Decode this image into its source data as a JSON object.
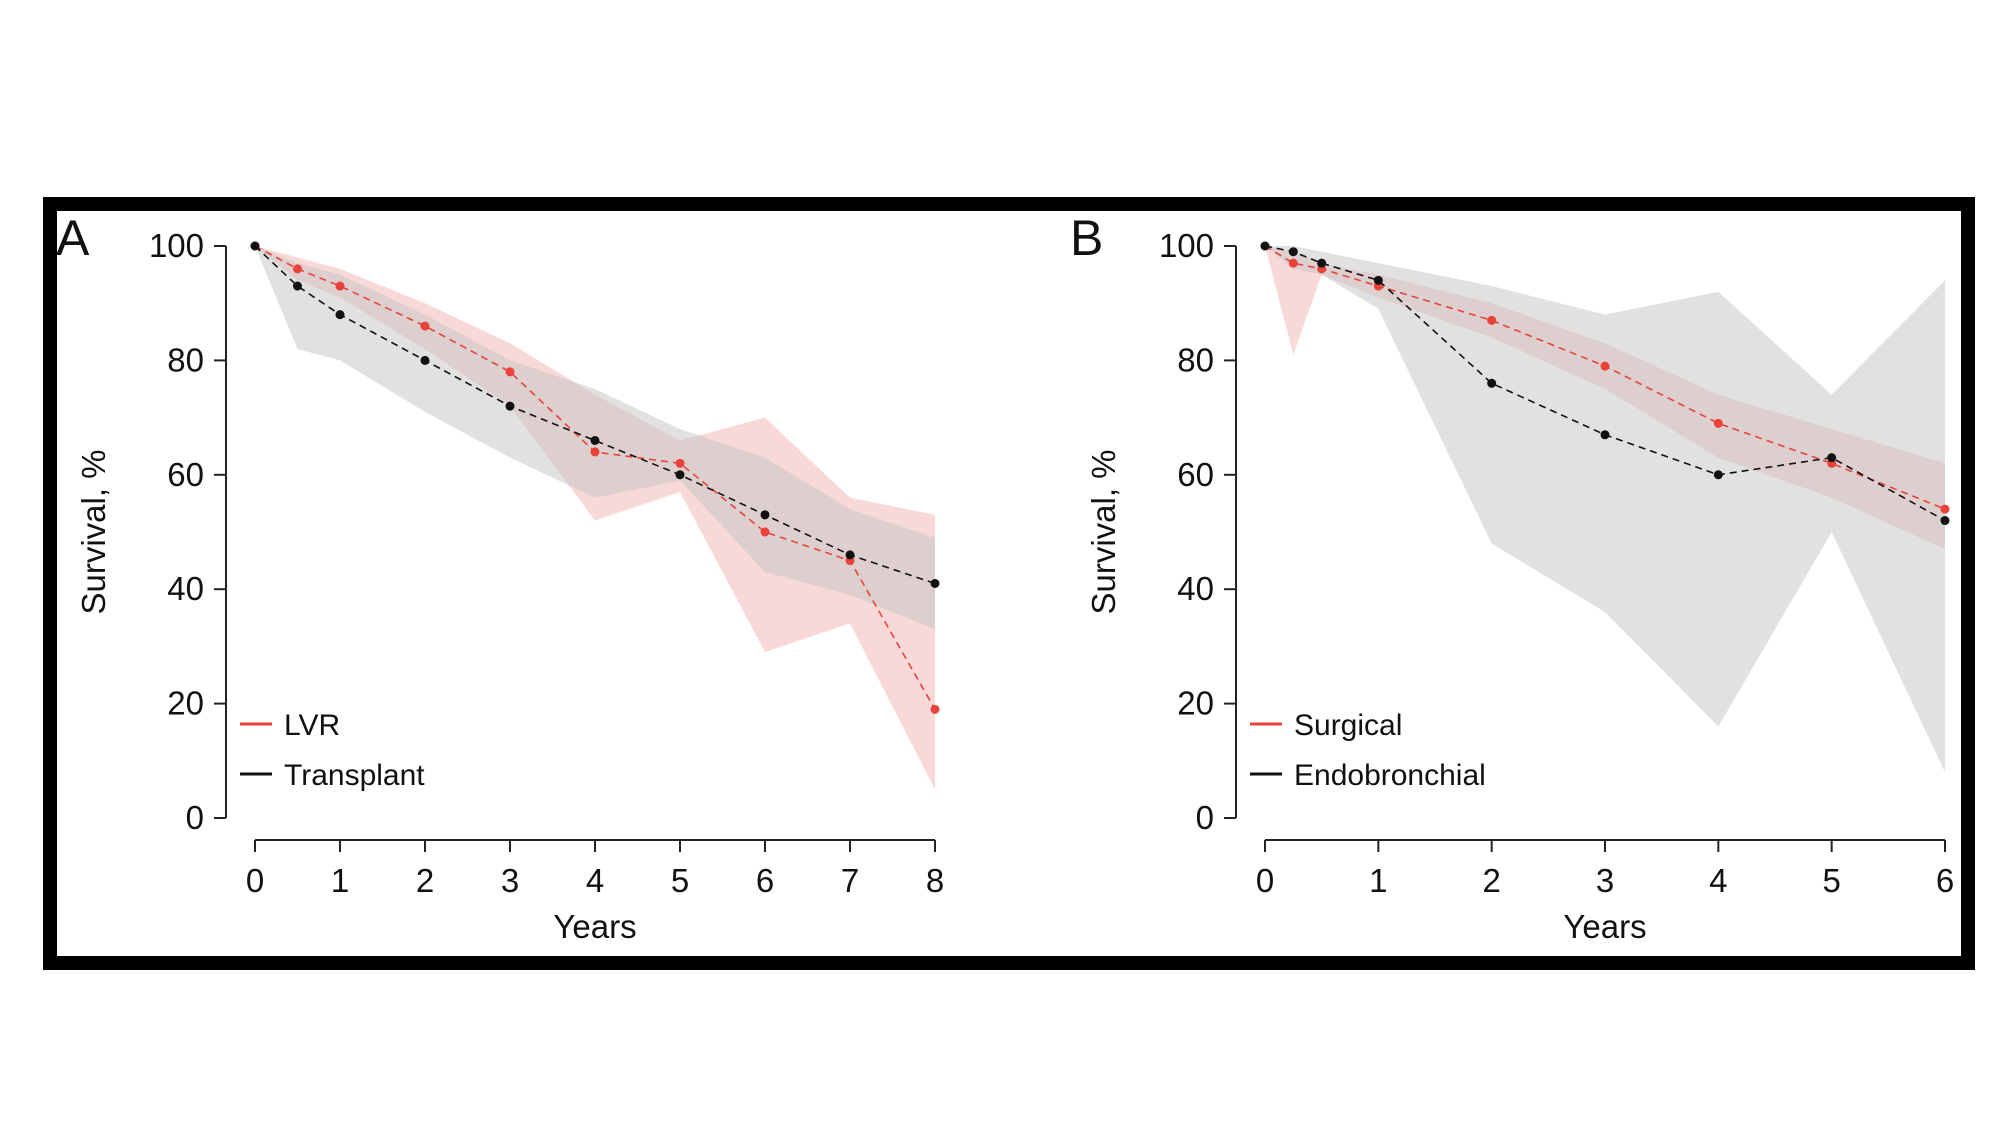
{
  "chart_data": [
    {
      "panel": "A",
      "type": "line",
      "ylabel": "Survival, %",
      "xlabel": "Years",
      "xlim": [
        0,
        8
      ],
      "ylim": [
        0,
        100
      ],
      "xticks": [
        "0",
        "1",
        "2",
        "3",
        "4",
        "5",
        "6",
        "7",
        "8"
      ],
      "yticks": [
        "0",
        "20",
        "40",
        "60",
        "80",
        "100"
      ],
      "legend_position": "bottom-left",
      "series": [
        {
          "name": "LVR",
          "color": "#e8423b",
          "band_color": "#f4b8b8",
          "points": [
            [
              0,
              100
            ],
            [
              0.5,
              96
            ],
            [
              1,
              93
            ],
            [
              2,
              86
            ],
            [
              3,
              78
            ],
            [
              4,
              64
            ],
            [
              5,
              62
            ],
            [
              6,
              50
            ],
            [
              7,
              45
            ],
            [
              8,
              19
            ]
          ],
          "upper": [
            [
              0,
              100
            ],
            [
              0.5,
              98
            ],
            [
              1,
              96
            ],
            [
              2,
              90
            ],
            [
              3,
              83
            ],
            [
              4,
              74
            ],
            [
              5,
              66
            ],
            [
              6,
              70
            ],
            [
              7,
              56
            ],
            [
              8,
              53
            ]
          ],
          "lower": [
            [
              0,
              100
            ],
            [
              0.5,
              94
            ],
            [
              1,
              91
            ],
            [
              2,
              82
            ],
            [
              3,
              72
            ],
            [
              4,
              52
            ],
            [
              5,
              57
            ],
            [
              6,
              29
            ],
            [
              7,
              34
            ],
            [
              8,
              5
            ]
          ]
        },
        {
          "name": "Transplant",
          "color": "#111111",
          "band_color": "#c8c8c8",
          "points": [
            [
              0,
              100
            ],
            [
              0.5,
              93
            ],
            [
              1,
              88
            ],
            [
              2,
              80
            ],
            [
              3,
              72
            ],
            [
              4,
              66
            ],
            [
              5,
              60
            ],
            [
              6,
              53
            ],
            [
              7,
              46
            ],
            [
              8,
              41
            ]
          ],
          "upper": [
            [
              0,
              100
            ],
            [
              0.5,
              97
            ],
            [
              1,
              95
            ],
            [
              2,
              88
            ],
            [
              3,
              80
            ],
            [
              4,
              75
            ],
            [
              5,
              68
            ],
            [
              6,
              63
            ],
            [
              7,
              54
            ],
            [
              8,
              49
            ]
          ],
          "lower": [
            [
              0,
              100
            ],
            [
              0.5,
              82
            ],
            [
              1,
              80
            ],
            [
              2,
              71
            ],
            [
              3,
              63
            ],
            [
              4,
              56
            ],
            [
              5,
              59
            ],
            [
              6,
              43
            ],
            [
              7,
              39
            ],
            [
              8,
              33
            ]
          ]
        }
      ]
    },
    {
      "panel": "B",
      "type": "line",
      "ylabel": "Survival, %",
      "xlabel": "Years",
      "xlim": [
        0,
        6
      ],
      "ylim": [
        0,
        100
      ],
      "xticks": [
        "0",
        "1",
        "2",
        "3",
        "4",
        "5",
        "6"
      ],
      "yticks": [
        "0",
        "20",
        "40",
        "60",
        "80",
        "100"
      ],
      "legend_position": "bottom-left",
      "series": [
        {
          "name": "Surgical",
          "color": "#e8423b",
          "band_color": "#f4b8b8",
          "points": [
            [
              0,
              100
            ],
            [
              0.25,
              97
            ],
            [
              0.5,
              96
            ],
            [
              1,
              93
            ],
            [
              2,
              87
            ],
            [
              3,
              79
            ],
            [
              4,
              69
            ],
            [
              5,
              62
            ],
            [
              6,
              54
            ]
          ],
          "upper": [
            [
              0,
              100
            ],
            [
              0.25,
              99
            ],
            [
              0.5,
              97
            ],
            [
              1,
              95
            ],
            [
              2,
              90
            ],
            [
              3,
              83
            ],
            [
              4,
              74
            ],
            [
              5,
              68
            ],
            [
              6,
              62
            ]
          ],
          "lower": [
            [
              0,
              100
            ],
            [
              0.25,
              81
            ],
            [
              0.5,
              95
            ],
            [
              1,
              91
            ],
            [
              2,
              84
            ],
            [
              3,
              75
            ],
            [
              4,
              63
            ],
            [
              5,
              56
            ],
            [
              6,
              47
            ]
          ]
        },
        {
          "name": "Endobronchial",
          "color": "#111111",
          "band_color": "#c8c8c8",
          "points": [
            [
              0,
              100
            ],
            [
              0.25,
              99
            ],
            [
              0.5,
              97
            ],
            [
              1,
              94
            ],
            [
              2,
              76
            ],
            [
              3,
              67
            ],
            [
              4,
              60
            ],
            [
              5,
              63
            ],
            [
              6,
              52
            ]
          ],
          "upper": [
            [
              0,
              100
            ],
            [
              0.25,
              100
            ],
            [
              0.5,
              99
            ],
            [
              1,
              97
            ],
            [
              2,
              93
            ],
            [
              3,
              88
            ],
            [
              4,
              92
            ],
            [
              5,
              74
            ],
            [
              6,
              94
            ]
          ],
          "lower": [
            [
              0,
              100
            ],
            [
              0.25,
              96
            ],
            [
              0.5,
              95
            ],
            [
              1,
              89
            ],
            [
              2,
              48
            ],
            [
              3,
              36
            ],
            [
              4,
              16
            ],
            [
              5,
              50
            ],
            [
              6,
              8
            ]
          ]
        }
      ]
    }
  ]
}
